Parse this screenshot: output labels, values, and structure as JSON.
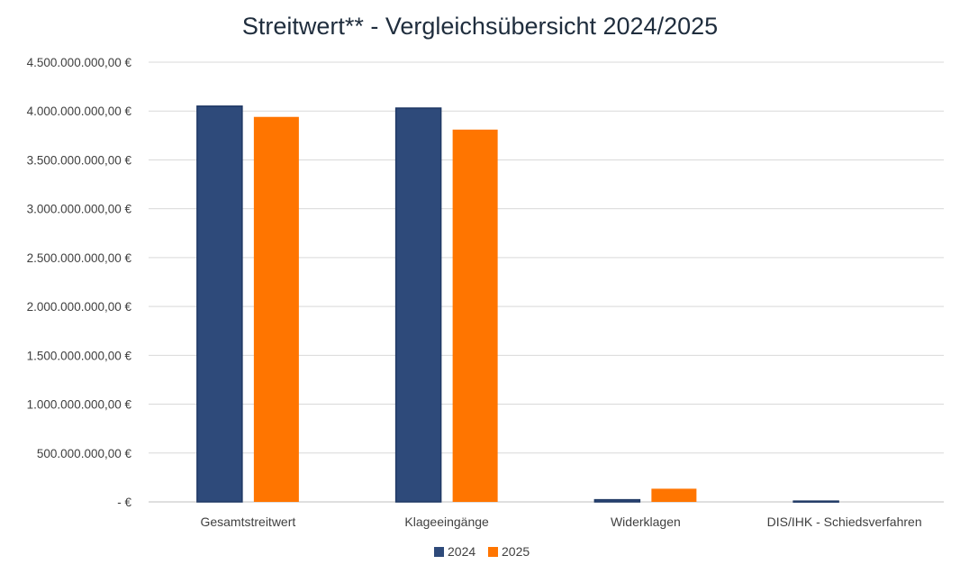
{
  "chart_data": {
    "type": "bar",
    "title": "Streitwert** - Vergleichsübersicht 2024/2025",
    "categories": [
      "Gesamtstreitwert",
      "Klageeingänge",
      "Widerklagen",
      "DIS/IHK - Schiedsverfahren"
    ],
    "series": [
      {
        "name": "2024",
        "color": "#2e4a7a",
        "values": [
          4050000000,
          4030000000,
          22000000,
          8000000
        ]
      },
      {
        "name": "2025",
        "color": "#ff7500",
        "values": [
          3940000000,
          3810000000,
          135000000,
          0
        ]
      }
    ],
    "ylim": [
      0,
      4500000000
    ],
    "yticks": [
      0,
      500000000,
      1000000000,
      1500000000,
      2000000000,
      2500000000,
      3000000000,
      3500000000,
      4000000000,
      4500000000
    ],
    "ytick_labels": [
      "-  €",
      "500.000.000,00 €",
      "1.000.000.000,00 €",
      "1.500.000.000,00 €",
      "2.000.000.000,00 €",
      "2.500.000.000,00 €",
      "3.000.000.000,00 €",
      "3.500.000.000,00 €",
      "4.000.000.000,00 €",
      "4.500.000.000,00 €"
    ],
    "grid": true,
    "legend_position": "bottom-center",
    "xlabel": "",
    "ylabel": ""
  }
}
